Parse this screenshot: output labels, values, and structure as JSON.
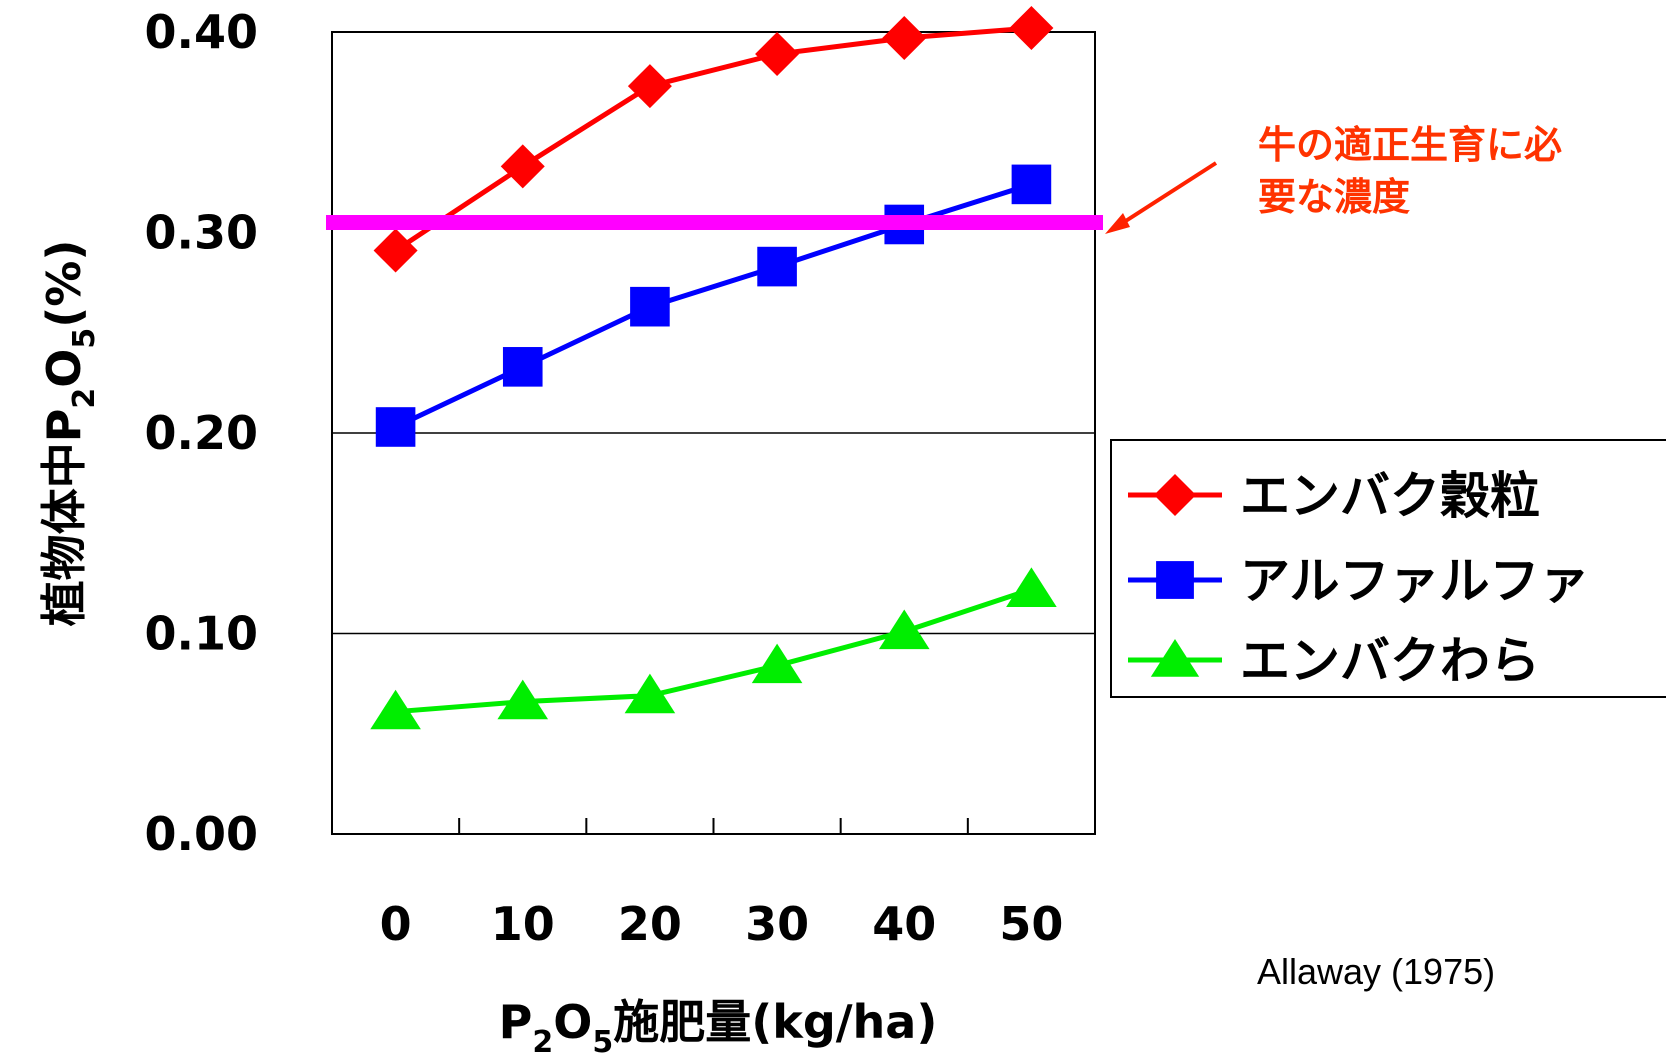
{
  "chart_data": {
    "type": "line",
    "title": "",
    "x": [
      0,
      10,
      20,
      30,
      40,
      50
    ],
    "x_tick_labels": [
      "0",
      "10",
      "20",
      "30",
      "40",
      "50"
    ],
    "xlabel": {
      "pre": "P",
      "sub1": "2",
      "mid": "O",
      "sub2": "5",
      "post": "施肥量(kg/ha)"
    },
    "ylabel": {
      "pre": "植物体中P",
      "sub1": "2",
      "mid": "O",
      "sub2": "5",
      "post": "(%)"
    },
    "ylim": [
      0.0,
      0.4
    ],
    "y_ticks": [
      0.0,
      0.1,
      0.2,
      0.3,
      0.4
    ],
    "y_tick_labels": [
      "0.00",
      "0.10",
      "0.20",
      "0.30",
      "0.40"
    ],
    "grid": "horizontal at 0.10 and 0.20",
    "legend_position": "right",
    "series": [
      {
        "name": "エンバク穀粒",
        "color": "#ff0000",
        "marker": "diamond",
        "values": [
          0.291,
          0.333,
          0.373,
          0.389,
          0.397,
          0.402
        ]
      },
      {
        "name": "アルファルファ",
        "color": "#0000ff",
        "marker": "square",
        "values": [
          0.203,
          0.233,
          0.263,
          0.283,
          0.304,
          0.324
        ]
      },
      {
        "name": "エンバクわら",
        "color": "#00ee00",
        "marker": "triangle",
        "values": [
          0.061,
          0.066,
          0.069,
          0.084,
          0.101,
          0.122
        ]
      }
    ],
    "reference_line": {
      "value": 0.305,
      "color": "#ff00ff"
    },
    "annotation": {
      "lines": [
        "牛の適正生育に必",
        "要な濃度"
      ],
      "color": "#ff3300"
    },
    "source": "Allaway (1975)"
  }
}
